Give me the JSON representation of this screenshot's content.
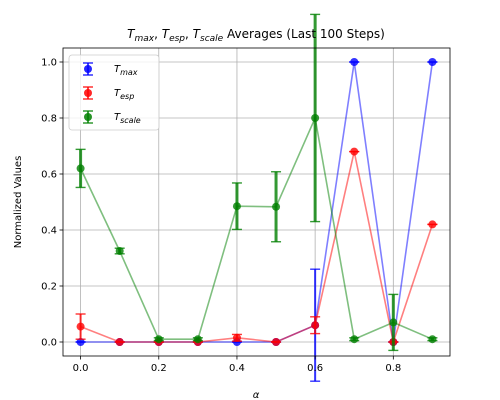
{
  "chart_data": {
    "type": "line",
    "title": "T_max, T_esp, T_scale Averages (Last 100 Steps)",
    "title_parts": [
      {
        "text": "T",
        "sub": "max",
        "after": ", "
      },
      {
        "text": "T",
        "sub": "esp",
        "after": ", "
      },
      {
        "text": "T",
        "sub": "scale",
        "after": " Averages (Last 100 Steps)"
      }
    ],
    "xlabel": "α",
    "ylabel": "Normalized Values",
    "xlim": [
      -0.045,
      0.945
    ],
    "ylim": [
      -0.05,
      1.05
    ],
    "xticks": [
      "0.0",
      "0.2",
      "0.4",
      "0.6",
      "0.8"
    ],
    "xtick_values": [
      0,
      0.2,
      0.4,
      0.6,
      0.8
    ],
    "yticks": [
      "0.0",
      "0.2",
      "0.4",
      "0.6",
      "0.8",
      "1.0"
    ],
    "ytick_values": [
      0,
      0.2,
      0.4,
      0.6,
      0.8,
      1.0
    ],
    "grid": true,
    "legend_position": "upper-left",
    "x": [
      0.0,
      0.1,
      0.2,
      0.3,
      0.4,
      0.5,
      0.6,
      0.7,
      0.8,
      0.9
    ],
    "series": [
      {
        "name": "T_max",
        "label_main": "T",
        "label_sub": "max",
        "color": "#0000ff",
        "values": [
          0.0,
          0.0,
          0.0,
          0.0,
          0.0,
          0.0,
          0.06,
          1.0,
          0.0,
          1.0
        ],
        "errors": [
          0.0,
          0.0,
          0.0,
          0.0,
          0.0,
          0.0,
          0.2,
          0.0,
          0.0,
          0.0
        ]
      },
      {
        "name": "T_esp",
        "label_main": "T",
        "label_sub": "esp",
        "color": "#ff0000",
        "values": [
          0.055,
          0.0,
          0.0,
          0.0,
          0.015,
          0.0,
          0.06,
          0.68,
          0.0,
          0.42
        ],
        "errors": [
          0.045,
          0.0,
          0.0,
          0.0,
          0.012,
          0.0,
          0.03,
          0.0,
          0.0,
          0.0
        ]
      },
      {
        "name": "T_scale",
        "label_main": "T",
        "label_sub": "scale",
        "color": "#008000",
        "values": [
          0.62,
          0.325,
          0.01,
          0.01,
          0.485,
          0.483,
          0.8,
          0.01,
          0.07,
          0.01
        ],
        "errors": [
          0.068,
          0.01,
          0.005,
          0.005,
          0.083,
          0.125,
          0.37,
          0.005,
          0.1,
          0.005
        ]
      }
    ]
  }
}
